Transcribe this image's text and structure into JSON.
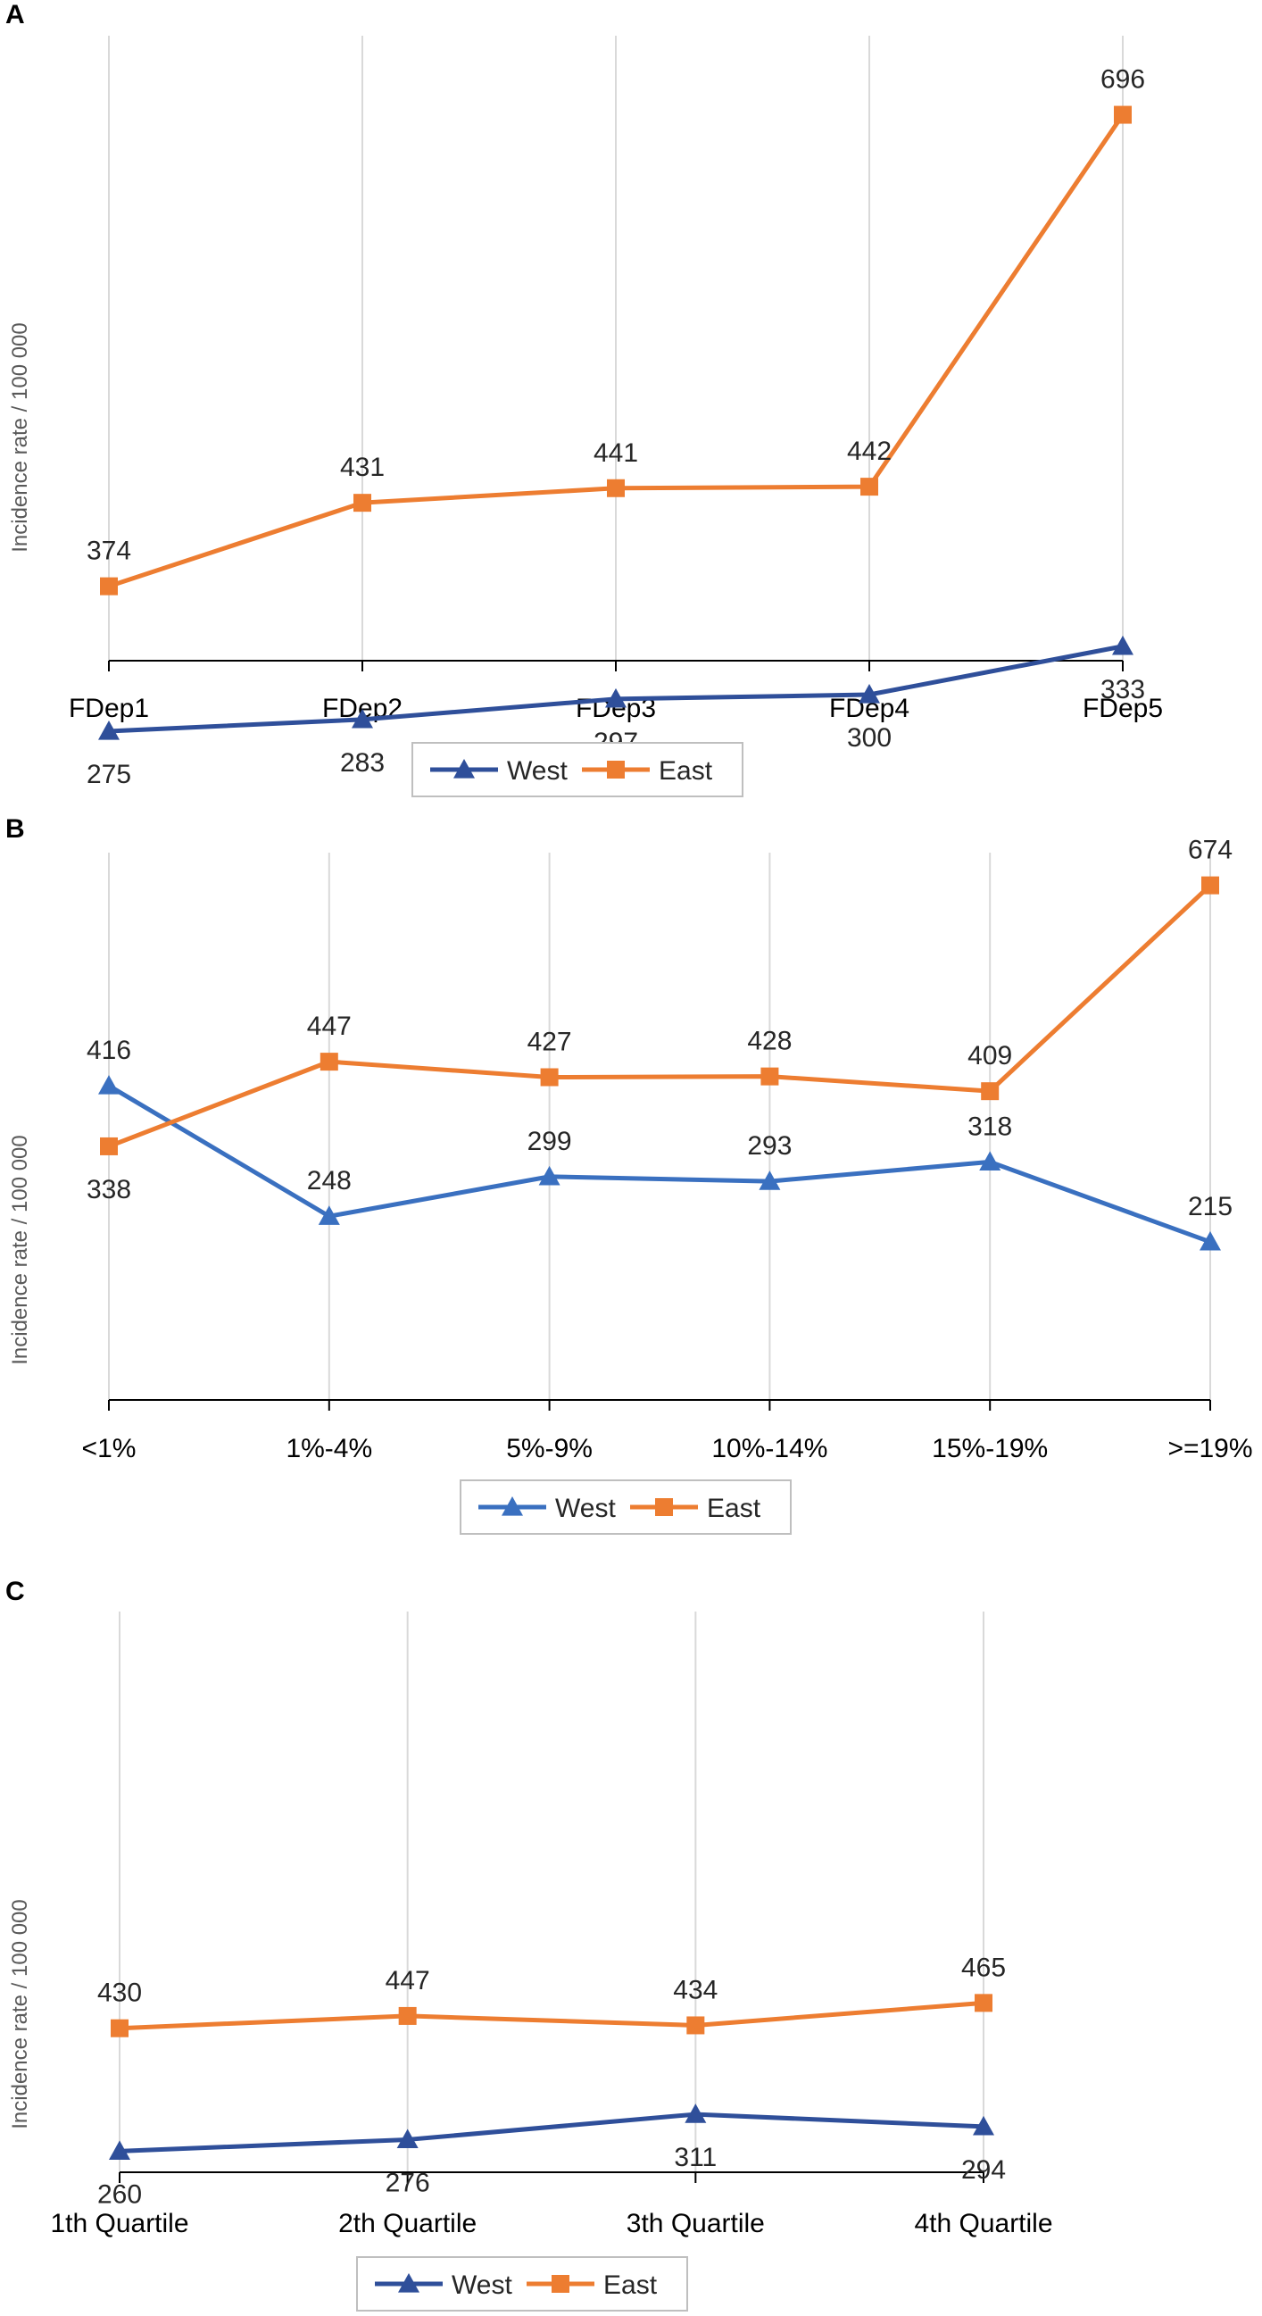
{
  "colors": {
    "grid": "#d9d9d9",
    "axis": "#000000",
    "legend_border": "#bfbfbf"
  },
  "chart_data": [
    {
      "panel": "A",
      "type": "line",
      "title": "",
      "ylabel": "Incidence rate / 100 000",
      "xlabel": "",
      "categories": [
        "FDep1",
        "FDep2",
        "FDep3",
        "FDep4",
        "FDep5"
      ],
      "ylim": [
        100,
        720
      ],
      "grid": "vertical",
      "legend": "bottom-center",
      "series": [
        {
          "name": "West",
          "marker": "triangle",
          "color": "#2f4f9a",
          "label_position": "below",
          "values": [
            275,
            283,
            297,
            300,
            333
          ]
        },
        {
          "name": "East",
          "marker": "square",
          "color": "#ed7d31",
          "label_position": "above",
          "values": [
            374,
            431,
            441,
            442,
            696
          ]
        }
      ]
    },
    {
      "panel": "B",
      "type": "line",
      "title": "",
      "ylabel": "Incidence rate / 100 000",
      "xlabel": "",
      "categories": [
        "<1%",
        "1%-4%",
        "5%-9%",
        "10%-14%",
        "15%-19%",
        ">=19%"
      ],
      "ylim": [
        0,
        800
      ],
      "grid": "vertical",
      "legend": "bottom-center",
      "series": [
        {
          "name": "West",
          "marker": "triangle",
          "color": "#3a70c0",
          "label_position": [
            "above",
            "above",
            "above",
            "above",
            "above",
            "above"
          ],
          "values": [
            416,
            248,
            299,
            293,
            318,
            215
          ]
        },
        {
          "name": "East",
          "marker": "square",
          "color": "#ed7d31",
          "label_position": [
            "below",
            "above",
            "above",
            "above",
            "above",
            "above"
          ],
          "values": [
            338,
            447,
            427,
            428,
            409,
            674
          ]
        }
      ]
    },
    {
      "panel": "C",
      "type": "line",
      "title": "",
      "ylabel": "Incidence rate / 100 000",
      "xlabel": "",
      "categories": [
        "1th Quartile",
        "2th Quartile",
        "3th Quartile",
        "4th Quartile"
      ],
      "ylim": [
        0,
        800
      ],
      "grid": "vertical",
      "legend": "bottom-center",
      "series": [
        {
          "name": "West",
          "marker": "triangle",
          "color": "#2f4f9a",
          "label_position": "below",
          "values": [
            260,
            276,
            311,
            294
          ]
        },
        {
          "name": "East",
          "marker": "square",
          "color": "#ed7d31",
          "label_position": "above",
          "values": [
            430,
            447,
            434,
            465
          ]
        }
      ]
    }
  ]
}
